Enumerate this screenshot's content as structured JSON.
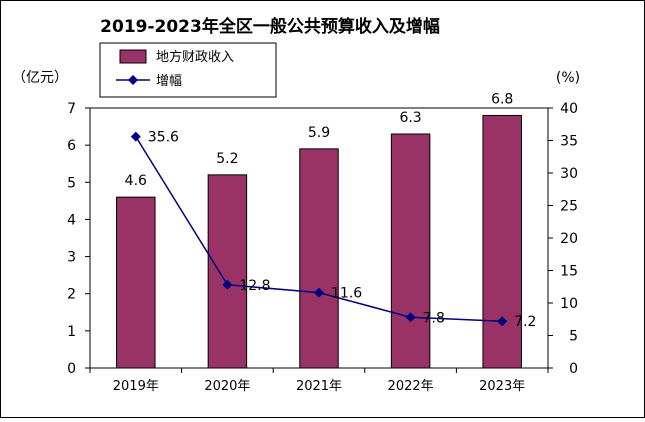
{
  "chart_data": {
    "type": "bar",
    "title": "2019-2023年全区一般公共预算收入及增幅",
    "categories": [
      "2019年",
      "2020年",
      "2021年",
      "2022年",
      "2023年"
    ],
    "y_left_label": "（亿元）",
    "y_right_label": "(%)",
    "y_left_range": [
      0,
      7
    ],
    "y_left_ticks": [
      0,
      1,
      2,
      3,
      4,
      5,
      6,
      7
    ],
    "y_right_range": [
      0,
      40
    ],
    "y_right_ticks": [
      0,
      5,
      10,
      15,
      20,
      25,
      30,
      35,
      40
    ],
    "grid": false,
    "legend_position": "top-left",
    "series": [
      {
        "name": "地方财政收入",
        "type": "bar",
        "axis": "left",
        "color": "#993366",
        "values": [
          4.6,
          5.2,
          5.9,
          6.3,
          6.8
        ],
        "labels": [
          "4.6",
          "5.2",
          "5.9",
          "6.3",
          "6.8"
        ]
      },
      {
        "name": "增幅",
        "type": "line",
        "axis": "right",
        "color": "#000080",
        "marker": "diamond",
        "values": [
          35.6,
          12.8,
          11.6,
          7.8,
          7.2
        ],
        "labels": [
          "35.6",
          "12.8",
          "11.6",
          "7.8",
          "7.2"
        ]
      }
    ]
  }
}
